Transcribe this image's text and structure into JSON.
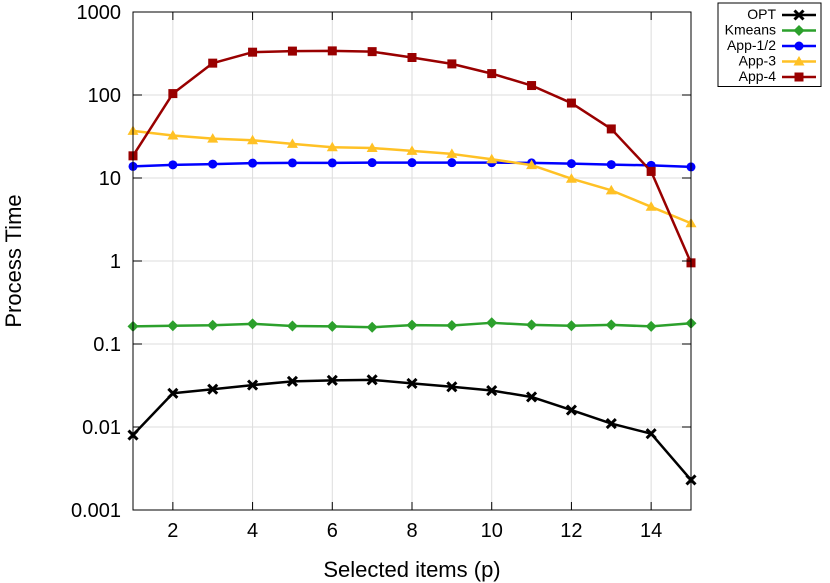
{
  "chart_data": {
    "type": "line",
    "title": "",
    "xlabel": "Selected items (p)",
    "ylabel": "Process Time",
    "xlim": [
      1,
      15
    ],
    "ylim": [
      0.001,
      1000
    ],
    "yscale": "log",
    "grid": true,
    "legend_position": "top-right, outside plot",
    "x_ticks": [
      2,
      4,
      6,
      8,
      10,
      12,
      14
    ],
    "y_ticks": [
      {
        "value": 0.001,
        "label": "0.001"
      },
      {
        "value": 0.01,
        "label": "0.01"
      },
      {
        "value": 0.1,
        "label": "0.1"
      },
      {
        "value": 1,
        "label": "1"
      },
      {
        "value": 10,
        "label": "10"
      },
      {
        "value": 100,
        "label": "100"
      },
      {
        "value": 1000,
        "label": "1000"
      }
    ],
    "x": [
      1,
      2,
      3,
      4,
      5,
      6,
      7,
      8,
      9,
      10,
      11,
      12,
      13,
      14,
      15
    ],
    "series": [
      {
        "name": "OPT",
        "color": "#000000",
        "marker": "x-cross",
        "values": [
          0.008,
          0.0255,
          0.0285,
          0.032,
          0.0355,
          0.0365,
          0.037,
          0.0335,
          0.0305,
          0.0275,
          0.023,
          0.016,
          0.011,
          0.0083,
          0.0023
        ]
      },
      {
        "name": "Kmeans",
        "color": "#2ca02c",
        "marker": "diamond",
        "values": [
          0.163,
          0.166,
          0.168,
          0.175,
          0.165,
          0.163,
          0.159,
          0.169,
          0.167,
          0.18,
          0.17,
          0.166,
          0.17,
          0.163,
          0.178
        ]
      },
      {
        "name": "App-1/2",
        "color": "#0000ff",
        "marker": "circle",
        "values": [
          13.8,
          14.4,
          14.7,
          15.1,
          15.2,
          15.2,
          15.3,
          15.3,
          15.3,
          15.3,
          15.2,
          14.9,
          14.5,
          14.2,
          13.6
        ]
      },
      {
        "name": "App-3",
        "color": "#ffc125",
        "marker": "triangle",
        "values": [
          37,
          32.5,
          29.8,
          28.5,
          25.8,
          23.5,
          23,
          21.2,
          19.5,
          16.8,
          14.3,
          9.8,
          7.1,
          4.5,
          2.85
        ]
      },
      {
        "name": "App-4",
        "color": "#990000",
        "marker": "square",
        "values": [
          18.5,
          104,
          242,
          328,
          338,
          340,
          333,
          283,
          237,
          181,
          130,
          80,
          39,
          12,
          0.95
        ]
      }
    ]
  }
}
